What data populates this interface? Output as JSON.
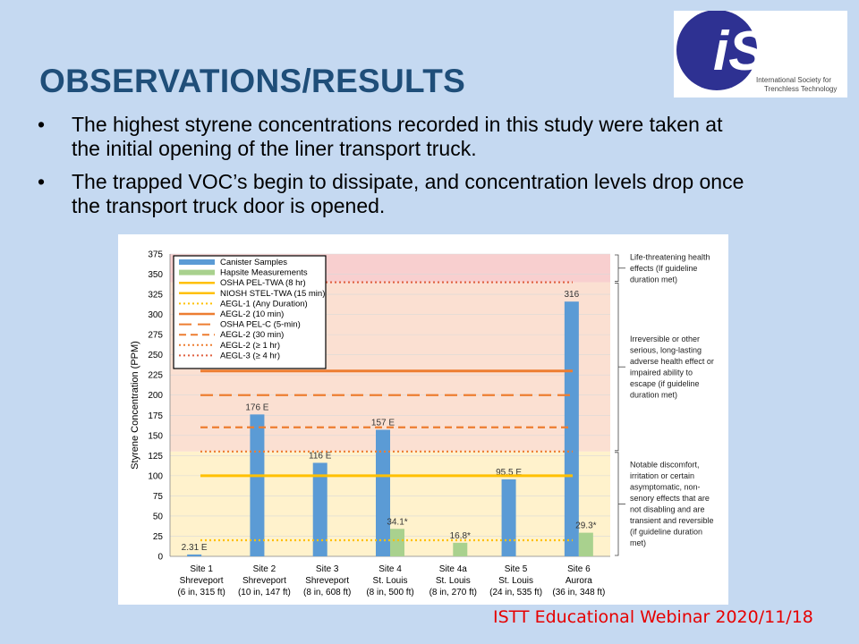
{
  "slide": {
    "title": "OBSERVATIONS/RESULTS",
    "bullets": [
      "The highest styrene concentrations recorded in this study were taken at the initial opening of the liner transport truck.",
      "The trapped VOC’s begin to dissipate, and concentration levels drop once the transport truck door is opened."
    ],
    "bullet_symbol": "•",
    "footer": "ISTT Educational Webinar 2020/11/18"
  },
  "logo": {
    "text": "iSTT",
    "caption_lines": [
      "International Society for",
      "Trenchless Technology"
    ],
    "color": "#2e3192"
  },
  "chart_data": {
    "type": "bar",
    "ylabel": "Styrene Concentration (PPM)",
    "ylim": [
      0,
      375
    ],
    "yticks": [
      0,
      25,
      50,
      75,
      100,
      125,
      150,
      175,
      200,
      225,
      250,
      275,
      300,
      325,
      350,
      375
    ],
    "categories": [
      [
        "Site 1",
        "Shreveport",
        "(6 in, 315 ft)"
      ],
      [
        "Site 2",
        "Shreveport",
        "(10 in, 147 ft)"
      ],
      [
        "Site 3",
        "Shreveport",
        "(8 in, 608 ft)"
      ],
      [
        "Site 4",
        "St. Louis",
        "(8 in, 500 ft)"
      ],
      [
        "Site 4a",
        "St. Louis",
        "(8 in, 270 ft)"
      ],
      [
        "Site 5",
        "St. Louis",
        "(24 in, 535 ft)"
      ],
      [
        "Site 6",
        "Aurora",
        "(36 in, 348 ft)"
      ]
    ],
    "series": [
      {
        "name": "Canister Samples",
        "color": "#5b9bd5",
        "values": [
          2.31,
          176,
          116,
          157,
          null,
          95.5,
          316
        ],
        "labels": [
          "2.31 E",
          "176 E",
          "116 E",
          "157 E",
          "",
          "95.5 E",
          "316"
        ]
      },
      {
        "name": "Hapsite Measurements",
        "color": "#a9d18e",
        "values": [
          null,
          null,
          null,
          34.1,
          16.8,
          null,
          29.3
        ],
        "labels": [
          "",
          "",
          "",
          "34.1*",
          "16.8*",
          "",
          "29.3*"
        ]
      }
    ],
    "reference_lines": [
      {
        "name": "OSHA PEL-TWA (8 hr)",
        "value": 100,
        "color": "#ffc000",
        "style": "solid"
      },
      {
        "name": "NIOSH STEL-TWA (15 min)",
        "value": 100,
        "color": "#ffc000",
        "style": "solid"
      },
      {
        "name": "AEGL-1 (Any Duration)",
        "value": 20,
        "color": "#ffc000",
        "style": "dotted"
      },
      {
        "name": "AEGL-2 (10 min)",
        "value": 230,
        "color": "#ed7d31",
        "style": "solid"
      },
      {
        "name": "OSHA PEL-C (5-min)",
        "value": 200,
        "color": "#ed7d31",
        "style": "longdash"
      },
      {
        "name": "AEGL-2 (30 min)",
        "value": 160,
        "color": "#ed7d31",
        "style": "dash"
      },
      {
        "name": "AEGL-2 (≥ 1 hr)",
        "value": 130,
        "color": "#ed7d31",
        "style": "dotted"
      },
      {
        "name": "AEGL-3 (≥ 4 hr)",
        "value": 340,
        "color": "#e06040",
        "style": "dotted"
      }
    ],
    "zones": [
      {
        "from": 0,
        "to": 130,
        "color": "#fff2cc",
        "note": "Notable discomfort, irritation or certain asymptomatic, non-senory effects that are not disabling and are transient and reversible (if guideline duration met)",
        "note_lines": [
          "Notable discomfort,",
          "irritation or certain",
          "asymptomatic, non-",
          "senory effects that are",
          "not disabling and are",
          "transient and reversible",
          "(if guideline duration",
          "met)"
        ]
      },
      {
        "from": 130,
        "to": 340,
        "color": "#fbe0d2",
        "note": "Irreversible or other serious, long-lasting adverse health effect or impaired ability to escape (if guideline duration met)",
        "note_lines": [
          "Irreversible or other",
          "serious, long-lasting",
          "adverse health effect or",
          "impaired ability to",
          "escape (if guideline",
          "duration met)"
        ]
      },
      {
        "from": 340,
        "to": 375,
        "color": "#f8cfcf",
        "note": "Life-threatening health effects (If guideline duration met)",
        "note_lines": [
          "Life-threatening health",
          "effects (If guideline",
          "duration met)"
        ]
      }
    ],
    "legend_position": "top-left"
  }
}
